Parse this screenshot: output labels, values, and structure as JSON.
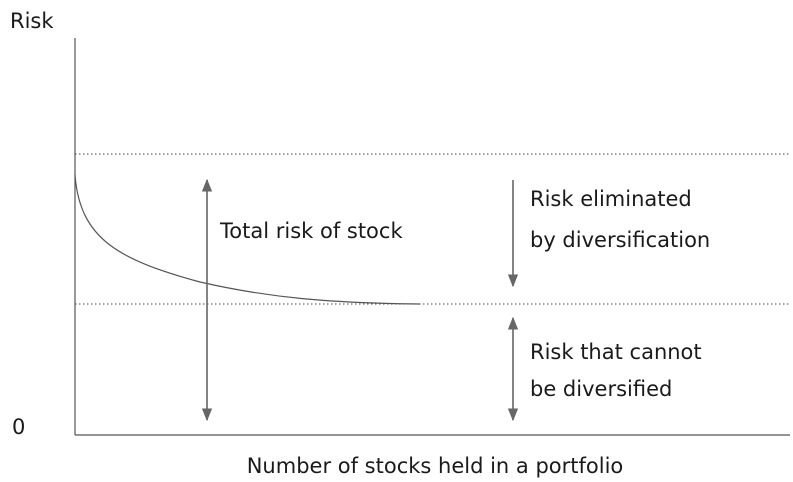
{
  "y_axis": {
    "label": "Risk",
    "origin_label": "0"
  },
  "x_axis": {
    "label": "Number of stocks held in a portfolio"
  },
  "annotations": {
    "total_risk": "Total risk of stock",
    "eliminated": [
      "Risk eliminated",
      "by diversification"
    ],
    "undiversifiable": [
      "Risk that cannot",
      "be diversified"
    ]
  }
}
